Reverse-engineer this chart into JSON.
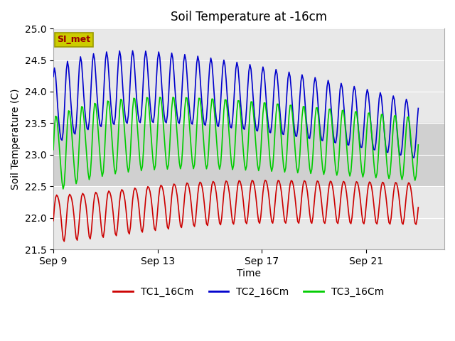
{
  "title": "Soil Temperature at -16cm",
  "xlabel": "Time",
  "ylabel": "Soil Temperature (C)",
  "ylim": [
    21.5,
    25.0
  ],
  "xlim_days": [
    0,
    15
  ],
  "x_tick_labels": [
    "Sep 9",
    "Sep 13",
    "Sep 17",
    "Sep 21"
  ],
  "x_tick_positions": [
    0,
    4,
    8,
    12
  ],
  "shaded_band": [
    22.5,
    23.5
  ],
  "background_color": "#ffffff",
  "plot_bg_color": "#e8e8e8",
  "shaded_color": "#d0d0d0",
  "line_colors": {
    "TC1_16Cm": "#cc0000",
    "TC2_16Cm": "#0000cc",
    "TC3_16Cm": "#00cc00"
  },
  "legend_labels": [
    "TC1_16Cm",
    "TC2_16Cm",
    "TC3_16Cm"
  ],
  "annotation_text": "SI_met",
  "annotation_color": "#990000",
  "annotation_bg": "#cccc00",
  "annotation_edge": "#999900"
}
